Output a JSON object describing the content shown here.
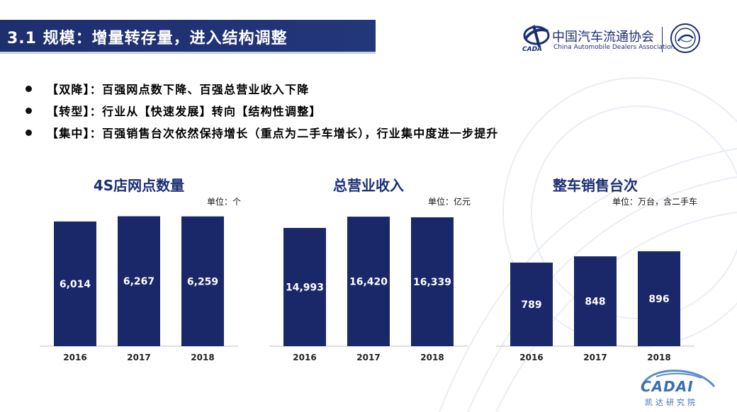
{
  "slide": {
    "title": "3.1 规模：增量转存量，进入结构调整",
    "bullets": [
      "【双降】：百强网点数下降、百强总营业收入下降",
      "【转型】：行业从【快速发展】转向【结构性调整】",
      "【集中】：百强销售台次依然保持增长（重点为二手车增长），行业集中度进一步提升"
    ]
  },
  "logo": {
    "emblem_text": "CADA",
    "cn": "中国汽车流通协会",
    "en": "China Automobile Dealers Association"
  },
  "footer_logo": {
    "name": "CADAI",
    "cn": "凯达研究院"
  },
  "colors": {
    "bar": "#1a2769",
    "title_bar": "#1e2f6e",
    "chart_title": "#1b2f74",
    "axis": "#bfbfbf"
  },
  "chart_data": [
    {
      "type": "bar",
      "title": "4S店网点数量",
      "unit": "单位：个",
      "categories": [
        "2016",
        "2017",
        "2018"
      ],
      "values": [
        6014,
        6267,
        6259
      ],
      "labels": [
        "6,014",
        "6,267",
        "6,259"
      ],
      "ylim": [
        0,
        7000
      ]
    },
    {
      "type": "bar",
      "title": "总营业收入",
      "unit": "单位：亿元",
      "categories": [
        "2016",
        "2017",
        "2018"
      ],
      "values": [
        14993,
        16420,
        16339
      ],
      "labels": [
        "14,993",
        "16,420",
        "16,339"
      ],
      "ylim": [
        0,
        18400
      ]
    },
    {
      "type": "bar",
      "title": "整车销售台次",
      "unit": "单位：万台，含二手车",
      "categories": [
        "2016",
        "2017",
        "2018"
      ],
      "values": [
        789,
        848,
        896
      ],
      "labels": [
        "789",
        "848",
        "896"
      ],
      "ylim": [
        0,
        1370
      ]
    }
  ]
}
